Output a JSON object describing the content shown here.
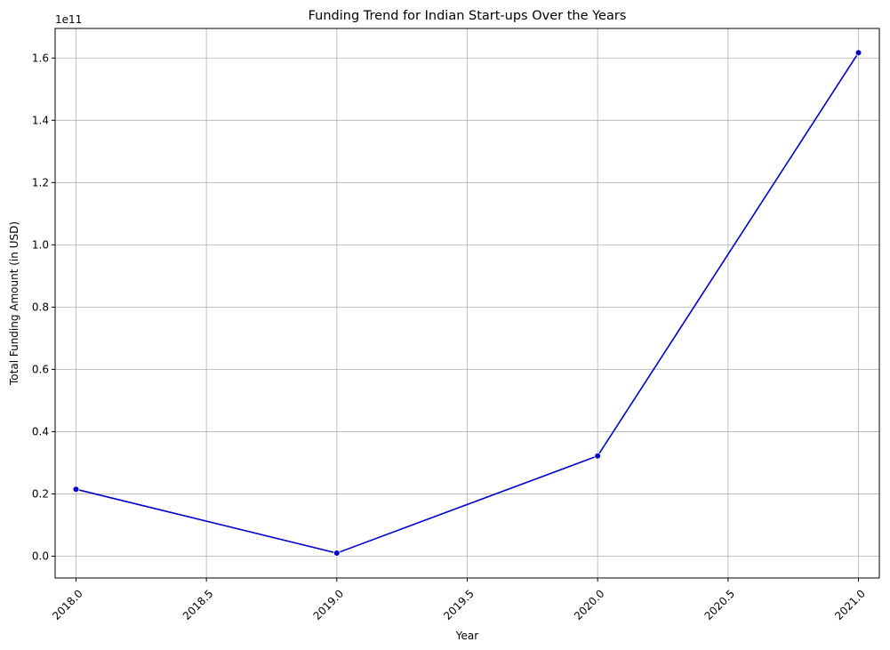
{
  "chart_data": {
    "type": "line",
    "title": "Funding Trend for Indian Start-ups Over the Years",
    "xlabel": "Year",
    "ylabel": "Total Funding Amount (in USD)",
    "y_offset_label": "1e11",
    "xlim": [
      2017.92,
      2021.08
    ],
    "ylim": [
      -0.07,
      1.695
    ],
    "y_scale_factor": 100000000000,
    "x_ticks": [
      2018.0,
      2018.5,
      2019.0,
      2019.5,
      2020.0,
      2020.5,
      2021.0
    ],
    "x_tick_labels": [
      "2018.0",
      "2018.5",
      "2019.0",
      "2019.5",
      "2020.0",
      "2020.5",
      "2021.0"
    ],
    "y_ticks": [
      0.0,
      0.2,
      0.4,
      0.6,
      0.8,
      1.0,
      1.2,
      1.4,
      1.6
    ],
    "y_tick_labels": [
      "0.0",
      "0.2",
      "0.4",
      "0.6",
      "0.8",
      "1.0",
      "1.2",
      "1.4",
      "1.6"
    ],
    "x_tick_rotation_deg": 45,
    "grid": true,
    "series": [
      {
        "x": [
          2018,
          2019,
          2020,
          2021
        ],
        "y": [
          0.215,
          0.01,
          0.322,
          1.617
        ],
        "color": "#0000cc",
        "marker": "circle"
      }
    ]
  }
}
